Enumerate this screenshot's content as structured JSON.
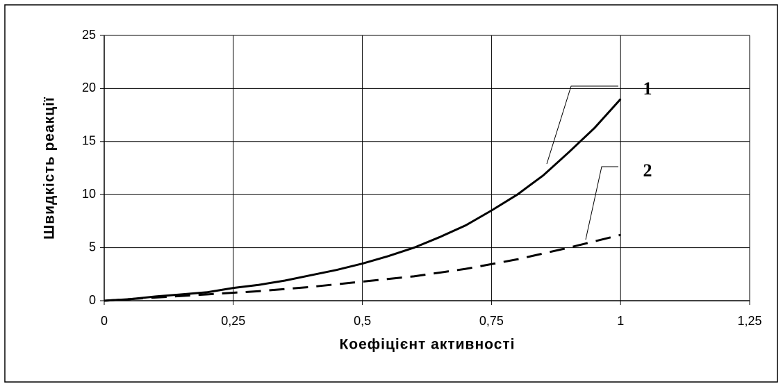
{
  "chart_data": {
    "type": "line",
    "xlabel": "Коефіцієнт активності",
    "ylabel": "Швидкість реакції",
    "xlim": [
      0,
      1.25
    ],
    "xticks": [
      0,
      {
        "value": 0.25,
        "label": "0,25"
      },
      {
        "value": 0.5,
        "label": "0,5"
      },
      {
        "value": 0.75,
        "label": "0,75"
      },
      1,
      {
        "value": 1.25,
        "label": "1,25"
      }
    ],
    "ylim": [
      0,
      25
    ],
    "yticks": [
      0,
      5,
      10,
      15,
      20,
      25
    ],
    "grid": true,
    "series": [
      {
        "name": "1",
        "color": "#000000",
        "dashed": false,
        "x": [
          0,
          0.05,
          0.1,
          0.15,
          0.2,
          0.25,
          0.3,
          0.35,
          0.4,
          0.45,
          0.5,
          0.55,
          0.6,
          0.65,
          0.7,
          0.75,
          0.8,
          0.85,
          0.9,
          0.95,
          1
        ],
        "values": [
          0,
          0.15,
          0.4,
          0.6,
          0.8,
          1.2,
          1.5,
          1.9,
          2.4,
          2.9,
          3.5,
          4.2,
          5.0,
          6.0,
          7.1,
          8.5,
          10.0,
          11.8,
          14.0,
          16.3,
          19.0
        ]
      },
      {
        "name": "2",
        "color": "#000000",
        "dashed": true,
        "x": [
          0,
          0.1,
          0.2,
          0.3,
          0.4,
          0.5,
          0.6,
          0.7,
          0.8,
          0.9,
          1
        ],
        "values": [
          0,
          0.3,
          0.6,
          0.9,
          1.3,
          1.8,
          2.3,
          3.0,
          3.9,
          5.0,
          6.2
        ]
      }
    ]
  }
}
